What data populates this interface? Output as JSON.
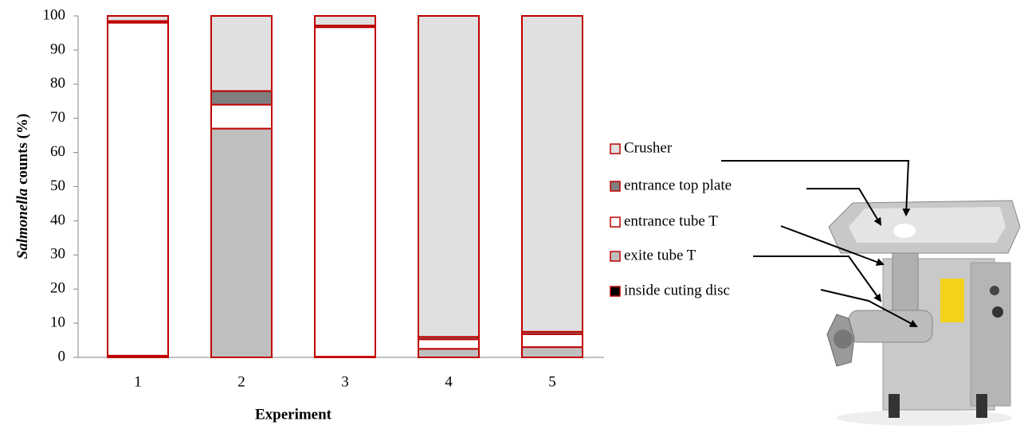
{
  "chart_data": {
    "type": "stacked_bar",
    "ylabel": [
      "Salmonella",
      "counts (%)"
    ],
    "xlabel": "Experiment",
    "categories": [
      "1",
      "2",
      "3",
      "4",
      "5"
    ],
    "series": [
      {
        "name": "inside cuting disc",
        "color": "#000000",
        "values": [
          0,
          0,
          0,
          0,
          0
        ]
      },
      {
        "name": "exite tube T",
        "color": "#bfbfbf",
        "values": [
          0.5,
          67,
          0.2,
          2.5,
          3
        ]
      },
      {
        "name": "entrance tube T",
        "color": "#ffffff",
        "values": [
          97.5,
          7,
          96.5,
          2.8,
          3.8
        ]
      },
      {
        "name": "entrance top plate",
        "color": "#7f7f7f",
        "values": [
          0.5,
          4,
          0.5,
          0.7,
          0.7
        ]
      },
      {
        "name": "Crusher",
        "color": "#e0e0e0",
        "values": [
          1.5,
          22,
          2.8,
          94,
          92.5
        ]
      }
    ],
    "edgecolor": "#c00000",
    "ylim": [
      0,
      100
    ],
    "yticks": [
      0,
      10,
      20,
      30,
      40,
      50,
      60,
      70,
      80,
      90,
      100
    ],
    "grid": false
  }
}
